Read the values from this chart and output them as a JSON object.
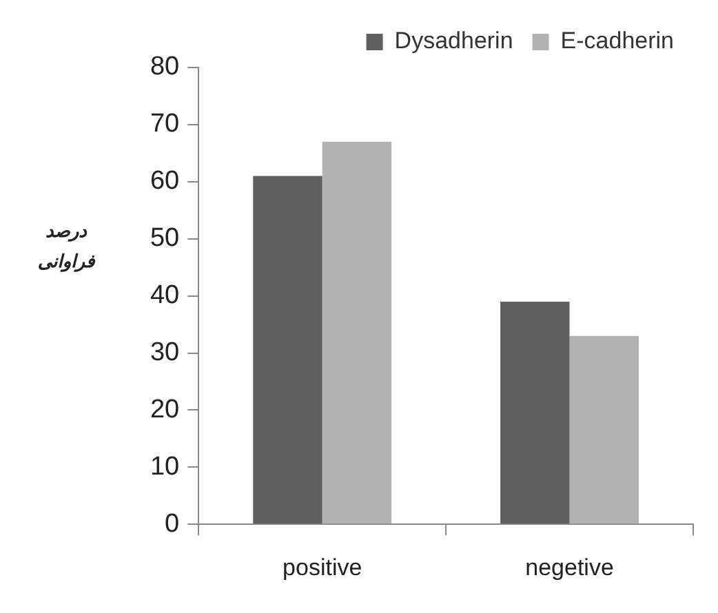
{
  "chart_data": {
    "type": "bar",
    "ylabel": "درصد فراوانی",
    "categories": [
      "positive",
      "negetive"
    ],
    "series": [
      {
        "name": "Dysadherin",
        "color": "#606060",
        "values": [
          61,
          39
        ]
      },
      {
        "name": "E-cadherin",
        "color": "#b2b2b2",
        "values": [
          67,
          33
        ]
      }
    ],
    "ylim": [
      0,
      80
    ],
    "yticks": [
      0,
      10,
      20,
      30,
      40,
      50,
      60,
      70,
      80
    ],
    "grid": false,
    "legend": "top right"
  }
}
